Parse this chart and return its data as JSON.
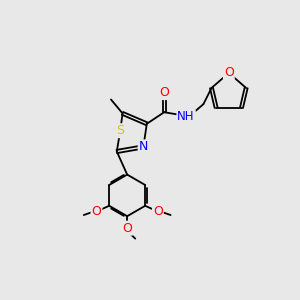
{
  "background_color": "#e8e8e8",
  "bond_color": "#000000",
  "atom_colors": {
    "O": "#ff0000",
    "N": "#0000ff",
    "S": "#cccc00",
    "C": "#000000"
  },
  "figsize": [
    3.0,
    3.0
  ],
  "dpi": 100
}
